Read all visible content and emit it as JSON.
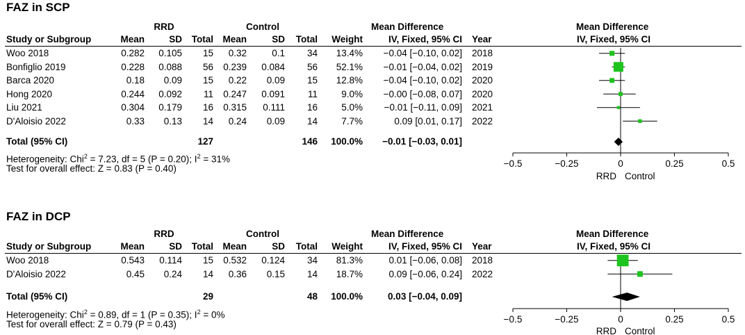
{
  "chart_data": [
    {
      "type": "forest",
      "title": "FAZ in SCP",
      "group_labels": {
        "rrd": "RRD",
        "control": "Control"
      },
      "column_headers": {
        "study": "Study or Subgroup",
        "mean_rrd": "Mean",
        "sd_rrd": "SD",
        "total_rrd": "Total",
        "mean_ctrl": "Mean",
        "sd_ctrl": "SD",
        "total_ctrl": "Total",
        "weight": "Weight",
        "md_top": "Mean Difference",
        "md_bottom": "IV, Fixed, 95% CI",
        "year": "Year",
        "plot_top": "Mean Difference",
        "plot_bottom": "IV, Fixed, 95% CI"
      },
      "studies": [
        {
          "name": "Woo 2018",
          "mean_rrd": "0.282",
          "sd_rrd": "0.105",
          "total_rrd": "15",
          "mean_ctrl": "0.32",
          "sd_ctrl": "0.1",
          "total_ctrl": "34",
          "weight_label": "13.4%",
          "ci_label": "−0.04 [−0.10, 0.02]",
          "year": "2018",
          "md": -0.04,
          "lo": -0.1,
          "hi": 0.02,
          "weight": 13.4
        },
        {
          "name": "Bonfiglio 2019",
          "mean_rrd": "0.228",
          "sd_rrd": "0.088",
          "total_rrd": "56",
          "mean_ctrl": "0.239",
          "sd_ctrl": "0.084",
          "total_ctrl": "56",
          "weight_label": "52.1%",
          "ci_label": "−0.01 [−0.04, 0.02]",
          "year": "2019",
          "md": -0.01,
          "lo": -0.04,
          "hi": 0.02,
          "weight": 52.1
        },
        {
          "name": "Barca 2020",
          "mean_rrd": "0.18",
          "sd_rrd": "0.09",
          "total_rrd": "15",
          "mean_ctrl": "0.22",
          "sd_ctrl": "0.09",
          "total_ctrl": "15",
          "weight_label": "12.8%",
          "ci_label": "−0.04 [−0.10, 0.02]",
          "year": "2020",
          "md": -0.04,
          "lo": -0.1,
          "hi": 0.02,
          "weight": 12.8
        },
        {
          "name": "Hong 2020",
          "mean_rrd": "0.244",
          "sd_rrd": "0.092",
          "total_rrd": "11",
          "mean_ctrl": "0.247",
          "sd_ctrl": "0.091",
          "total_ctrl": "11",
          "weight_label": "9.0%",
          "ci_label": "−0.00 [−0.08, 0.07]",
          "year": "2020",
          "md": -0.0,
          "lo": -0.08,
          "hi": 0.07,
          "weight": 9.0
        },
        {
          "name": "Liu 2021",
          "mean_rrd": "0.304",
          "sd_rrd": "0.179",
          "total_rrd": "16",
          "mean_ctrl": "0.315",
          "sd_ctrl": "0.111",
          "total_ctrl": "16",
          "weight_label": "5.0%",
          "ci_label": "−0.01 [−0.11, 0.09]",
          "year": "2021",
          "md": -0.01,
          "lo": -0.11,
          "hi": 0.09,
          "weight": 5.0
        },
        {
          "name": "D'Aloisio 2022",
          "mean_rrd": "0.33",
          "sd_rrd": "0.13",
          "total_rrd": "14",
          "mean_ctrl": "0.24",
          "sd_ctrl": "0.09",
          "total_ctrl": "14",
          "weight_label": "7.7%",
          "ci_label": "0.09 [0.01, 0.17]",
          "year": "2022",
          "md": 0.09,
          "lo": 0.01,
          "hi": 0.17,
          "weight": 7.7
        }
      ],
      "total": {
        "label": "Total (95% CI)",
        "total_rrd": "127",
        "total_ctrl": "146",
        "weight_label": "100.0%",
        "ci_label": "−0.01 [−0.03, 0.01]",
        "md": -0.01,
        "lo": -0.03,
        "hi": 0.01
      },
      "heterogeneity": {
        "prefix": "Heterogeneity: Chi",
        "sup1": "2",
        "middle": " = 7.23, df = 5 (P = 0.20); I",
        "sup2": "2",
        "suffix": " = 31%"
      },
      "overall_effect": "Test for overall effect: Z = 0.83 (P = 0.40)",
      "x_ticks": [
        -0.5,
        -0.25,
        0,
        0.25,
        0.5
      ],
      "x_tick_labels": [
        "−0.5",
        "−0.25",
        "0",
        "0.25",
        "0.5"
      ],
      "xlim": [
        -0.5,
        0.5
      ],
      "favours_left": "RRD",
      "favours_right": "Control",
      "colors": {
        "square": "#1ec41e",
        "diamond": "#000000"
      }
    },
    {
      "type": "forest",
      "title": "FAZ in DCP",
      "group_labels": {
        "rrd": "RRD",
        "control": "Control"
      },
      "column_headers": {
        "study": "Study or Subgroup",
        "mean_rrd": "Mean",
        "sd_rrd": "SD",
        "total_rrd": "Total",
        "mean_ctrl": "Mean",
        "sd_ctrl": "SD",
        "total_ctrl": "Total",
        "weight": "Weight",
        "md_top": "Mean Difference",
        "md_bottom": "IV, Fixed, 95% CI",
        "year": "Year",
        "plot_top": "Mean Difference",
        "plot_bottom": "IV, Fixed, 95% CI"
      },
      "studies": [
        {
          "name": "Woo 2018",
          "mean_rrd": "0.543",
          "sd_rrd": "0.114",
          "total_rrd": "15",
          "mean_ctrl": "0.532",
          "sd_ctrl": "0.124",
          "total_ctrl": "34",
          "weight_label": "81.3%",
          "ci_label": "0.01 [−0.06, 0.08]",
          "year": "2018",
          "md": 0.01,
          "lo": -0.06,
          "hi": 0.08,
          "weight": 81.3
        },
        {
          "name": "D'Aloisio 2022",
          "mean_rrd": "0.45",
          "sd_rrd": "0.24",
          "total_rrd": "14",
          "mean_ctrl": "0.36",
          "sd_ctrl": "0.15",
          "total_ctrl": "14",
          "weight_label": "18.7%",
          "ci_label": "0.09 [−0.06, 0.24]",
          "year": "2022",
          "md": 0.09,
          "lo": -0.06,
          "hi": 0.24,
          "weight": 18.7
        }
      ],
      "total": {
        "label": "Total (95% CI)",
        "total_rrd": "29",
        "total_ctrl": "48",
        "weight_label": "100.0%",
        "ci_label": "0.03 [−0.04, 0.09]",
        "md": 0.03,
        "lo": -0.04,
        "hi": 0.09
      },
      "heterogeneity": {
        "prefix": "Heterogeneity: Chi",
        "sup1": "2",
        "middle": " = 0.89, df = 1 (P = 0.35); I",
        "sup2": "2",
        "suffix": " = 0%"
      },
      "overall_effect": "Test for overall effect: Z = 0.79 (P = 0.43)",
      "x_ticks": [
        -0.5,
        -0.25,
        0,
        0.25,
        0.5
      ],
      "x_tick_labels": [
        "−0.5",
        "−0.25",
        "0",
        "0.25",
        "0.5"
      ],
      "xlim": [
        -0.5,
        0.5
      ],
      "favours_left": "RRD",
      "favours_right": "Control",
      "colors": {
        "square": "#1ec41e",
        "diamond": "#000000"
      }
    }
  ]
}
